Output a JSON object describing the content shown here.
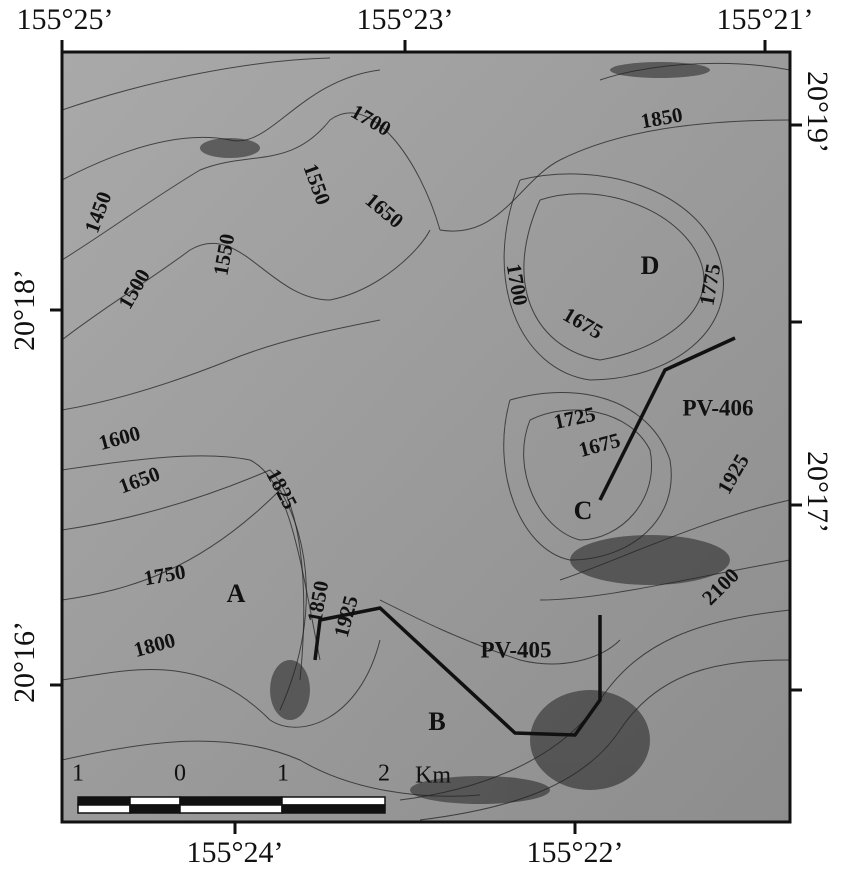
{
  "map": {
    "top_longitude_labels": [
      "155°25’",
      "155°23’",
      "155°21’"
    ],
    "bottom_longitude_labels": [
      "155°24’",
      "155°22’"
    ],
    "left_latitude_labels": [
      "20°18’",
      "20°16’"
    ],
    "right_latitude_labels": [
      "20°19’",
      "20°17’"
    ],
    "contour_labels": [
      "1700",
      "1850",
      "1550",
      "1650",
      "1450",
      "1550",
      "1500",
      "1700",
      "1675",
      "1775",
      "1725",
      "1675",
      "1600",
      "1650",
      "1825",
      "1925",
      "1750",
      "1850",
      "1925",
      "1800",
      "2100"
    ],
    "point_labels": [
      "D",
      "C",
      "A",
      "B"
    ],
    "profile_labels": [
      "PV-406",
      "PV-405"
    ],
    "scale_labels": [
      "1",
      "0",
      "1",
      "2",
      "Km"
    ]
  }
}
